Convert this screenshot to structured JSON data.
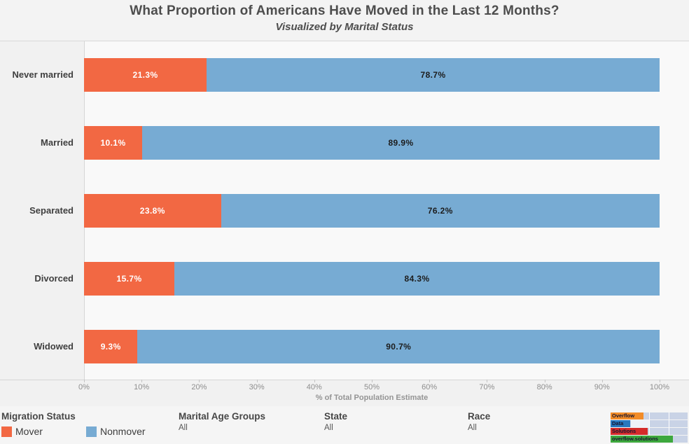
{
  "header": {
    "title": "What Proportion of Americans Have Moved in the Last 12 Months?",
    "subtitle": "Visualized by Marital Status"
  },
  "chart_data": {
    "type": "bar",
    "stacked": true,
    "orientation": "horizontal",
    "categories": [
      "Never married",
      "Married",
      "Separated",
      "Divorced",
      "Widowed"
    ],
    "series": [
      {
        "name": "Mover",
        "color": "#f26843",
        "label_color": "#ffffff",
        "values": [
          21.3,
          10.1,
          23.8,
          15.7,
          9.3
        ],
        "labels": [
          "21.3%",
          "10.1%",
          "23.8%",
          "15.7%",
          "9.3%"
        ]
      },
      {
        "name": "Nonmover",
        "color": "#77abd3",
        "label_color": "#1c1c1c",
        "values": [
          78.7,
          89.9,
          76.2,
          84.3,
          90.7
        ],
        "labels": [
          "78.7%",
          "89.9%",
          "76.2%",
          "84.3%",
          "90.7%"
        ]
      }
    ],
    "xlabel": "% of Total Population Estimate",
    "xlim": [
      0,
      100
    ],
    "x_ticks": [
      "0%",
      "10%",
      "20%",
      "30%",
      "40%",
      "50%",
      "60%",
      "70%",
      "80%",
      "90%",
      "100%"
    ],
    "grid": false,
    "legend_position": "bottom-left"
  },
  "legend": {
    "title": "Migration Status",
    "items": [
      {
        "label": "Mover",
        "color": "#f26843"
      },
      {
        "label": "Nonmover",
        "color": "#77abd3"
      }
    ]
  },
  "filters": [
    {
      "title": "Marital Age Groups",
      "value": "All"
    },
    {
      "title": "State",
      "value": "All"
    },
    {
      "title": "Race",
      "value": "All"
    }
  ],
  "logo": {
    "rows": [
      {
        "label": "Overflow",
        "color": "#f28c28",
        "width": 47
      },
      {
        "label": "Data",
        "color": "#2878be",
        "width": 28
      },
      {
        "label": "Solutions",
        "color": "#d42b2b",
        "width": 53
      },
      {
        "label": "overflow.solutions",
        "color": "#3da83d",
        "width": 89
      }
    ]
  }
}
